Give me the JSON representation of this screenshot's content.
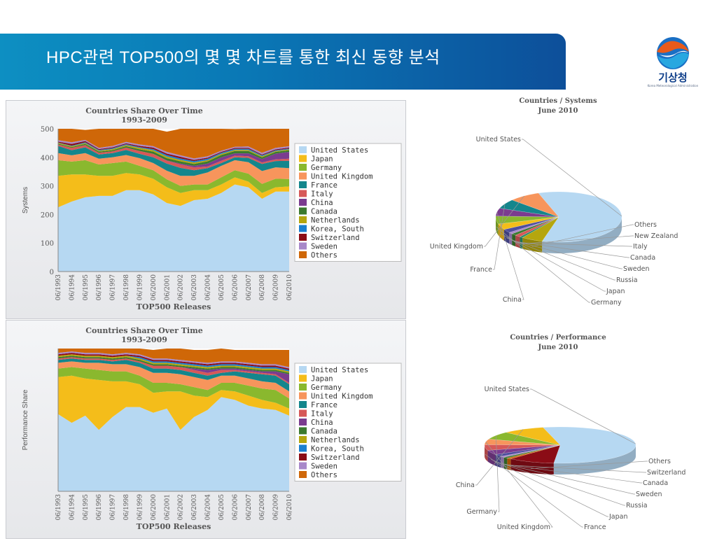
{
  "header": {
    "title": "HPC관련 TOP500의 몇 몇 차트를 통한 최신 동향 분석"
  },
  "logo": {
    "name": "기상청",
    "subtitle": "Korea Meteorological Administration"
  },
  "colors": {
    "United States": "#b6d8f2",
    "Japan": "#f4bd1a",
    "Germany": "#8ab82e",
    "United Kingdom": "#f7955c",
    "France": "#14868c",
    "Italy": "#d65858",
    "China": "#7b3c8f",
    "Canada": "#3b7a2e",
    "Netherlands": "#b5a60e",
    "Korea, South": "#1a7fd0",
    "Switzerland": "#8b0c16",
    "Sweden": "#a888c9",
    "Russia": "#4e4e9e",
    "New Zealand": "#2a8e6a",
    "Others": "#cf6708"
  },
  "chart_data": [
    {
      "type": "area",
      "title": "Countries Share Over Time",
      "subtitle": "1993-2009",
      "xlabel": "TOP500 Releases",
      "ylabel": "Systems",
      "ylim": [
        0,
        500
      ],
      "yticks": [
        "0",
        "100",
        "200",
        "300",
        "400",
        "500"
      ],
      "x": [
        "06/1993",
        "06/1994",
        "06/1995",
        "06/1996",
        "06/1997",
        "06/1998",
        "06/1999",
        "06/2000",
        "06/2001",
        "06/2002",
        "06/2003",
        "06/2004",
        "06/2005",
        "06/2006",
        "06/2007",
        "06/2008",
        "06/2009",
        "06/2010"
      ],
      "legend": [
        "United States",
        "Japan",
        "Germany",
        "United Kingdom",
        "France",
        "Italy",
        "China",
        "Canada",
        "Netherlands",
        "Korea, South",
        "Switzerland",
        "Sweden",
        "Others"
      ],
      "series": [
        {
          "name": "United States",
          "values": [
            225,
            245,
            260,
            265,
            265,
            285,
            285,
            270,
            240,
            230,
            250,
            255,
            275,
            305,
            295,
            255,
            280,
            280
          ]
        },
        {
          "name": "Japan",
          "values": [
            110,
            95,
            80,
            70,
            70,
            60,
            55,
            55,
            55,
            45,
            35,
            30,
            30,
            25,
            20,
            20,
            15,
            18
          ]
        },
        {
          "name": "Germany",
          "values": [
            55,
            45,
            50,
            40,
            45,
            40,
            30,
            30,
            28,
            25,
            20,
            20,
            25,
            25,
            28,
            32,
            30,
            26
          ]
        },
        {
          "name": "United Kingdom",
          "values": [
            25,
            22,
            25,
            20,
            20,
            23,
            27,
            25,
            30,
            35,
            30,
            42,
            40,
            35,
            40,
            45,
            40,
            38
          ]
        },
        {
          "name": "France",
          "values": [
            25,
            18,
            20,
            15,
            15,
            18,
            15,
            20,
            25,
            28,
            20,
            15,
            10,
            10,
            15,
            25,
            22,
            26
          ]
        },
        {
          "name": "Italy",
          "values": [
            5,
            8,
            8,
            6,
            6,
            8,
            10,
            12,
            10,
            12,
            10,
            6,
            8,
            6,
            6,
            5,
            6,
            7
          ]
        },
        {
          "name": "China",
          "values": [
            0,
            0,
            0,
            0,
            0,
            0,
            0,
            0,
            1,
            3,
            5,
            10,
            12,
            8,
            10,
            12,
            20,
            24
          ]
        },
        {
          "name": "Canada",
          "values": [
            3,
            3,
            4,
            4,
            4,
            5,
            6,
            8,
            8,
            8,
            7,
            8,
            8,
            8,
            8,
            6,
            6,
            6
          ]
        },
        {
          "name": "Netherlands",
          "values": [
            3,
            3,
            3,
            3,
            4,
            4,
            5,
            5,
            6,
            5,
            5,
            4,
            4,
            4,
            4,
            4,
            3,
            3
          ]
        },
        {
          "name": "Korea, South",
          "values": [
            1,
            2,
            3,
            3,
            3,
            3,
            3,
            4,
            5,
            5,
            5,
            5,
            4,
            4,
            4,
            3,
            3,
            3
          ]
        },
        {
          "name": "Switzerland",
          "values": [
            3,
            6,
            4,
            3,
            3,
            3,
            4,
            5,
            5,
            6,
            4,
            4,
            3,
            3,
            3,
            3,
            3,
            3
          ]
        },
        {
          "name": "Sweden",
          "values": [
            5,
            6,
            4,
            4,
            5,
            5,
            5,
            5,
            6,
            5,
            5,
            5,
            4,
            4,
            5,
            6,
            5,
            5
          ]
        },
        {
          "name": "Others",
          "values": [
            40,
            47,
            35,
            67,
            60,
            46,
            55,
            61,
            71,
            93,
            104,
            96,
            77,
            62,
            62,
            84,
            67,
            61
          ]
        }
      ]
    },
    {
      "type": "area",
      "title": "Countries Share Over Time",
      "subtitle": "1993-2009",
      "xlabel": "TOP500 Releases",
      "ylabel": "Performance Share",
      "ylim": [
        0,
        1
      ],
      "x": [
        "06/1993",
        "06/1994",
        "06/1995",
        "06/1996",
        "06/1997",
        "06/1998",
        "06/1999",
        "06/2000",
        "06/2001",
        "06/2002",
        "06/2003",
        "06/2004",
        "06/2005",
        "06/2006",
        "06/2007",
        "06/2008",
        "06/2009",
        "06/2010"
      ],
      "legend": [
        "United States",
        "Japan",
        "Germany",
        "United Kingdom",
        "France",
        "Italy",
        "China",
        "Canada",
        "Netherlands",
        "Korea, South",
        "Switzerland",
        "Sweden",
        "Others"
      ],
      "series": [
        {
          "name": "United States",
          "values": [
            0.54,
            0.48,
            0.53,
            0.43,
            0.52,
            0.59,
            0.59,
            0.55,
            0.58,
            0.43,
            0.52,
            0.57,
            0.66,
            0.64,
            0.6,
            0.58,
            0.57,
            0.53
          ]
        },
        {
          "name": "Japan",
          "values": [
            0.26,
            0.33,
            0.26,
            0.35,
            0.25,
            0.18,
            0.16,
            0.14,
            0.12,
            0.27,
            0.15,
            0.09,
            0.05,
            0.06,
            0.07,
            0.06,
            0.05,
            0.05
          ]
        },
        {
          "name": "Germany",
          "values": [
            0.06,
            0.06,
            0.07,
            0.07,
            0.07,
            0.07,
            0.06,
            0.07,
            0.06,
            0.05,
            0.06,
            0.05,
            0.05,
            0.06,
            0.07,
            0.08,
            0.09,
            0.07
          ]
        },
        {
          "name": "United Kingdom",
          "values": [
            0.04,
            0.04,
            0.04,
            0.05,
            0.05,
            0.05,
            0.06,
            0.07,
            0.07,
            0.07,
            0.07,
            0.07,
            0.05,
            0.05,
            0.05,
            0.05,
            0.05,
            0.05
          ]
        },
        {
          "name": "France",
          "values": [
            0.02,
            0.02,
            0.02,
            0.02,
            0.02,
            0.03,
            0.03,
            0.03,
            0.03,
            0.03,
            0.03,
            0.03,
            0.02,
            0.03,
            0.04,
            0.05,
            0.05,
            0.05
          ]
        },
        {
          "name": "Italy",
          "values": [
            0.01,
            0.01,
            0.01,
            0.01,
            0.01,
            0.01,
            0.01,
            0.02,
            0.02,
            0.02,
            0.02,
            0.02,
            0.02,
            0.01,
            0.01,
            0.01,
            0.01,
            0.01
          ]
        },
        {
          "name": "China",
          "values": [
            0,
            0,
            0,
            0,
            0,
            0,
            0,
            0,
            0,
            0,
            0.01,
            0.02,
            0.01,
            0.01,
            0.01,
            0.01,
            0.02,
            0.06
          ]
        },
        {
          "name": "Canada",
          "values": [
            0.01,
            0.01,
            0.01,
            0.01,
            0.01,
            0.01,
            0.01,
            0.01,
            0.01,
            0.01,
            0.01,
            0.01,
            0.01,
            0.01,
            0.01,
            0.01,
            0.01,
            0.01
          ]
        },
        {
          "name": "Netherlands",
          "values": [
            0.01,
            0.01,
            0.01,
            0.01,
            0.01,
            0.01,
            0.01,
            0.01,
            0.01,
            0.01,
            0.01,
            0.01,
            0.01,
            0.01,
            0.01,
            0.01,
            0.01,
            0.01
          ]
        },
        {
          "name": "Korea, South",
          "values": [
            0,
            0,
            0,
            0,
            0,
            0,
            0.01,
            0.01,
            0.01,
            0.01,
            0.01,
            0.01,
            0.01,
            0.01,
            0.01,
            0.01,
            0.01,
            0.01
          ]
        },
        {
          "name": "Switzerland",
          "values": [
            0.01,
            0.01,
            0.01,
            0.01,
            0.01,
            0.01,
            0.01,
            0.01,
            0.01,
            0.01,
            0.01,
            0.01,
            0.01,
            0.01,
            0.01,
            0.01,
            0.01,
            0.01
          ]
        },
        {
          "name": "Sweden",
          "values": [
            0.01,
            0.01,
            0.01,
            0.01,
            0.01,
            0.01,
            0.01,
            0.01,
            0.01,
            0.01,
            0.01,
            0.01,
            0.01,
            0.01,
            0.01,
            0.01,
            0.01,
            0.01
          ]
        },
        {
          "name": "Others",
          "values": [
            0.03,
            0.02,
            0.03,
            0.03,
            0.04,
            0.03,
            0.04,
            0.06,
            0.07,
            0.08,
            0.08,
            0.09,
            0.09,
            0.08,
            0.09,
            0.1,
            0.1,
            0.12
          ]
        }
      ]
    },
    {
      "type": "pie",
      "title": "Countries / Systems",
      "subtitle": "June 2010",
      "slices": [
        {
          "label": "United States",
          "value": 282,
          "color": "#b6d8f2"
        },
        {
          "label": "Others",
          "value": 26,
          "color": "#b5a60e"
        },
        {
          "label": "New Zealand",
          "value": 4,
          "color": "#2a8e6a"
        },
        {
          "label": "Italy",
          "value": 7,
          "color": "#d65858"
        },
        {
          "label": "Canada",
          "value": 6,
          "color": "#3b7a2e"
        },
        {
          "label": "Sweden",
          "value": 5,
          "color": "#a888c9"
        },
        {
          "label": "Russia",
          "value": 11,
          "color": "#4e4e9e"
        },
        {
          "label": "Japan",
          "value": 18,
          "color": "#f4bd1a"
        },
        {
          "label": "Germany",
          "value": 24,
          "color": "#8ab82e"
        },
        {
          "label": "China",
          "value": 24,
          "color": "#7b3c8f"
        },
        {
          "label": "France",
          "value": 29,
          "color": "#14868c"
        },
        {
          "label": "United Kingdom",
          "value": 38,
          "color": "#f7955c"
        }
      ]
    },
    {
      "type": "pie",
      "title": "Countries / Performance",
      "subtitle": "June 2010",
      "slices": [
        {
          "label": "United States",
          "value": 55,
          "color": "#b6d8f2"
        },
        {
          "label": "Others",
          "value": 10,
          "color": "#8b0c16"
        },
        {
          "label": "Switzerland",
          "value": 1,
          "color": "#cf6708"
        },
        {
          "label": "Canada",
          "value": 1,
          "color": "#3b7a2e"
        },
        {
          "label": "Sweden",
          "value": 1,
          "color": "#a888c9"
        },
        {
          "label": "Russia",
          "value": 2,
          "color": "#4e4e9e"
        },
        {
          "label": "Japan",
          "value": 4,
          "color": "#7b3c8f"
        },
        {
          "label": "France",
          "value": 5,
          "color": "#d65858"
        },
        {
          "label": "United Kingdom",
          "value": 5,
          "color": "#f7955c"
        },
        {
          "label": "Germany",
          "value": 7,
          "color": "#8ab82e"
        },
        {
          "label": "China",
          "value": 9,
          "color": "#f4bd1a"
        }
      ]
    }
  ]
}
